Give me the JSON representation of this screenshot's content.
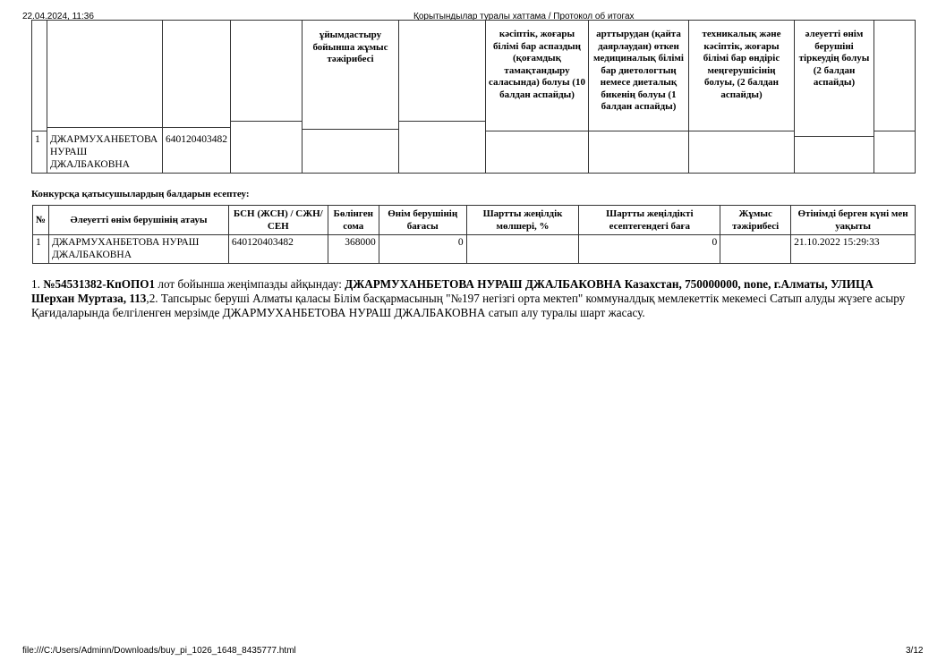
{
  "header": {
    "datetime": "22.04.2024, 11:36",
    "title": "Қорытындылар туралы хаттама / Протокол об итогах"
  },
  "top_table": {
    "headers": [
      "",
      "",
      "",
      "",
      "ұйымдастыру бойынша жұмыс тәжірибесі",
      "",
      "кәсіптік, жоғары білімі бар аспаздың (қоғамдық тамақтандыру саласында) болуы (10 балдан аспайды)",
      "арттырудан (қайта даярлаудан) өткен медициналық білімі бар диетологтың немесе диеталық бикенің болуы (1 балдан аспайды)",
      "техникалық және кәсіптік, жоғары білімі бар өндіріс меңгерушісінің болуы, (2 балдан аспайды)",
      "әлеуетті өнім берушіні тіркеудің болуы (2 балдан аспайды)",
      ""
    ],
    "row": {
      "num": "1",
      "name": "ДЖАРМУХАНБЕТОВА НУРАШ ДЖАЛБАКОВНА",
      "id": "640120403482"
    }
  },
  "scores": {
    "title": "Конкурсқа қатысушылардың балдарын есептеу:",
    "headers": [
      "№",
      "Әлеуетті өнім берушінің атауы",
      "БСН (ЖСН) / СЖН/ СЕН",
      "Бөлінген сома",
      "Өнім берушінің бағасы",
      "Шартты жеңілдік мөлшері, %",
      "Шартты жеңілдікті есептегендегі баға",
      "Жұмыс тәжірибесі",
      "Өтінімді берген күні мен уақыты"
    ],
    "rows": [
      [
        "1",
        "ДЖАРМУХАНБЕТОВА НУРАШ ДЖАЛБАКОВНА",
        "640120403482",
        "368000",
        "0",
        "",
        "0",
        "",
        "21.10.2022 15:29:33"
      ]
    ]
  },
  "result": {
    "p1": "1. ",
    "lot": "№54531382-КпОПО1",
    "p2": " лот бойынша жеңімпазды айқындау: ",
    "winner": "ДЖАРМУХАНБЕТОВА НУРАШ ДЖАЛБАКОВНА Казахстан, 750000000, none, г.Алматы, УЛИЦА Шерхан Муртаза, 113",
    "p3": ",2. Тапсырыс беруші Алматы қаласы Білім басқармасының \"№197 негізгі орта мектеп\" коммуналдық мемлекеттік мекемесі Сатып алуды жүзеге асыру Қағидаларында белгіленген мерзімде ДЖАРМУХАНБЕТОВА НУРАШ ДЖАЛБАКОВНА сатып алу туралы шарт жасасу."
  },
  "footer": {
    "path": "file:///C:/Users/Adminn/Downloads/buy_pi_1026_1648_8435777.html",
    "page": "3/12"
  }
}
